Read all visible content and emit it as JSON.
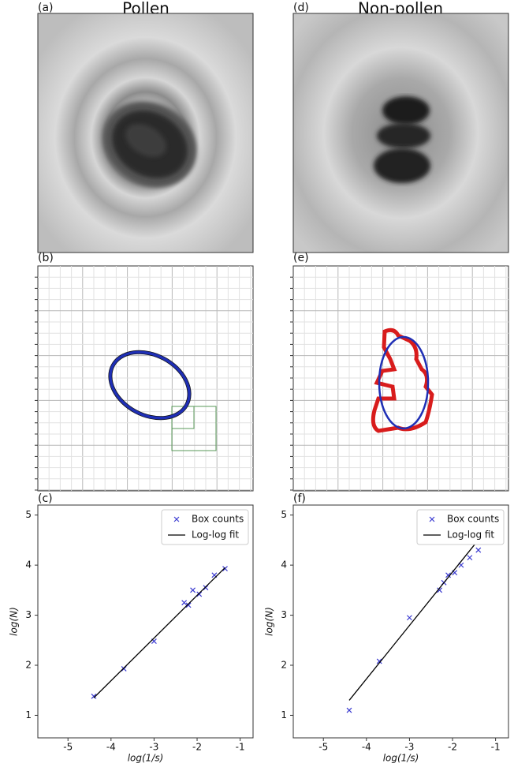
{
  "figure": {
    "titles": [
      "Pollen",
      "Non-pollen"
    ],
    "panel_labels": [
      "(a)",
      "(b)",
      "(c)",
      "(d)",
      "(e)",
      "(f)"
    ]
  },
  "chart_data": [
    {
      "type": "scatter",
      "xlabel": "log(1/s)",
      "ylabel": "log(N)",
      "xlim": [
        -5.7,
        -0.7
      ],
      "ylim": [
        0.55,
        5.2
      ],
      "xticks": [
        -5,
        -4,
        -3,
        -2,
        -1
      ],
      "yticks": [
        1,
        2,
        3,
        4,
        5
      ],
      "legend": "upper right",
      "series": [
        {
          "name": "Box counts",
          "type": "scatter",
          "color": "#3a3ad0",
          "x": [
            -4.4,
            -3.7,
            -3.0,
            -2.3,
            -2.2,
            -2.1,
            -1.95,
            -1.8,
            -1.6,
            -1.35
          ],
          "values": [
            1.38,
            1.93,
            2.48,
            3.25,
            3.2,
            3.5,
            3.42,
            3.55,
            3.8,
            3.93
          ]
        },
        {
          "name": "Log-log fit",
          "type": "line",
          "color": "#000000",
          "x": [
            -4.4,
            -1.35
          ],
          "values": [
            1.35,
            3.95
          ]
        }
      ]
    },
    {
      "type": "scatter",
      "xlabel": "log(1/s)",
      "ylabel": "log(N)",
      "xlim": [
        -5.7,
        -0.7
      ],
      "ylim": [
        0.55,
        5.2
      ],
      "xticks": [
        -5,
        -4,
        -3,
        -2,
        -1
      ],
      "yticks": [
        1,
        2,
        3,
        4,
        5
      ],
      "legend": "upper right",
      "series": [
        {
          "name": "Box counts",
          "type": "scatter",
          "color": "#3a3ad0",
          "x": [
            -4.4,
            -3.7,
            -3.0,
            -2.3,
            -2.2,
            -2.1,
            -1.95,
            -1.8,
            -1.6,
            -1.4
          ],
          "values": [
            1.1,
            2.08,
            2.95,
            3.5,
            3.65,
            3.8,
            3.85,
            4.0,
            4.15,
            4.3
          ]
        },
        {
          "name": "Log-log fit",
          "type": "line",
          "color": "#000000",
          "x": [
            -4.4,
            -1.45
          ],
          "values": [
            1.3,
            4.45
          ]
        }
      ]
    }
  ]
}
